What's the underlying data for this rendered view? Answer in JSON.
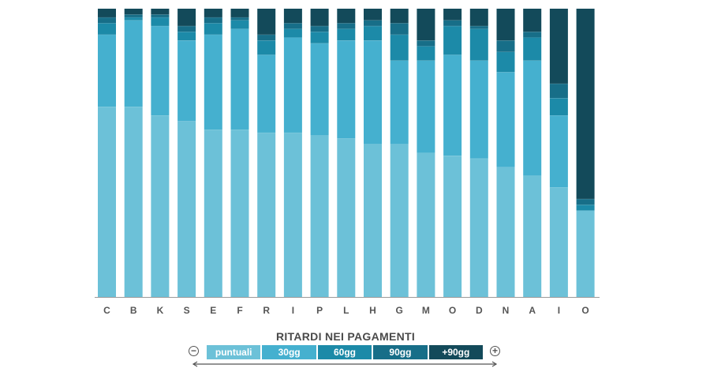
{
  "chart_data": {
    "type": "bar",
    "stacked": true,
    "normalized_percent": true,
    "categories": [
      "C",
      "B",
      "K",
      "S",
      "E",
      "F",
      "R",
      "I",
      "P",
      "L",
      "H",
      "G",
      "M",
      "O",
      "D",
      "N",
      "A",
      "I",
      "O"
    ],
    "series": [
      {
        "name": "puntuali",
        "color": "#6cc1d8",
        "values": [
          66,
          66,
          63,
          61,
          58,
          58,
          57,
          57,
          56,
          55,
          53,
          53,
          50,
          49,
          48,
          45,
          42,
          38,
          30
        ]
      },
      {
        "name": "30gg",
        "color": "#45b0cf",
        "values": [
          25,
          30,
          31,
          28,
          33,
          35,
          27,
          33,
          32,
          34,
          36,
          29,
          32,
          35,
          34,
          33,
          40,
          25,
          0
        ]
      },
      {
        "name": "60gg",
        "color": "#1c8aa8",
        "values": [
          4,
          1,
          3,
          3,
          4,
          3,
          5,
          3,
          4,
          4,
          5,
          9,
          5,
          10,
          11,
          7,
          8,
          6,
          2
        ]
      },
      {
        "name": "90gg",
        "color": "#176e88",
        "values": [
          2,
          1,
          1,
          2,
          2,
          1,
          2,
          2,
          2,
          2,
          2,
          4,
          2,
          2,
          1,
          4,
          2,
          5,
          2
        ]
      },
      {
        "name": "+90gg",
        "color": "#134a5a",
        "values": [
          3,
          2,
          2,
          6,
          3,
          3,
          9,
          5,
          6,
          5,
          4,
          5,
          11,
          4,
          6,
          11,
          8,
          26,
          66
        ]
      }
    ],
    "ylim": [
      0,
      100
    ],
    "grid": false
  },
  "legend": {
    "title": "RITARDI NEI PAGAMENTI",
    "items": [
      "puntuali",
      "30gg",
      "60gg",
      "90gg",
      "+90gg"
    ],
    "minus_symbol": "−",
    "plus_symbol": "+"
  }
}
